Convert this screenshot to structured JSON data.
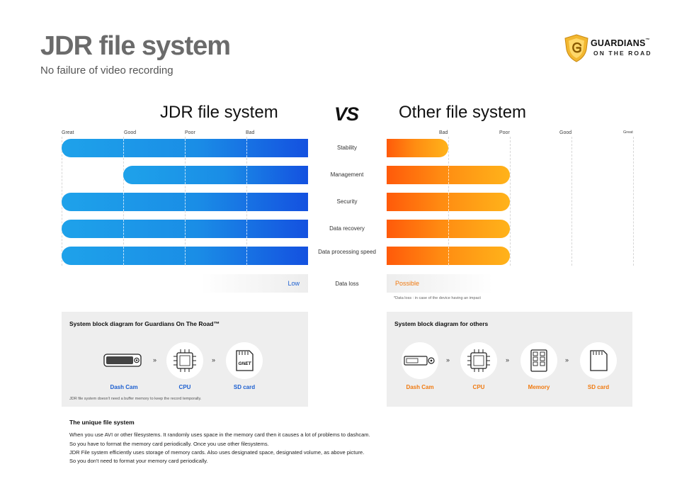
{
  "header": {
    "title": "JDR file system",
    "subtitle": "No failure of video recording",
    "logo_name": "GUARDIANS",
    "logo_tm": "™",
    "logo_tagline": "ON THE ROAD"
  },
  "comparison": {
    "left_heading": "JDR file system",
    "vs": "VS",
    "right_heading": "Other file system",
    "left_scale": [
      "Great",
      "Good",
      "Poor",
      "Bad"
    ],
    "right_scale": [
      "Bad",
      "Poor",
      "Good",
      "Great"
    ],
    "data_loss_label": "Data loss",
    "data_loss_jdr": "Low",
    "data_loss_other": "Possible",
    "footnote": "*Data loss : in case of the device having an impact"
  },
  "chart_data": {
    "type": "bar",
    "categories": [
      "Stability",
      "Management",
      "Security",
      "Data recovery",
      "Data processing speed"
    ],
    "scale": [
      "Bad",
      "Poor",
      "Good",
      "Great"
    ],
    "series": [
      {
        "name": "JDR file system",
        "values": [
          4,
          3,
          4,
          4,
          4
        ]
      },
      {
        "name": "Other file system",
        "values": [
          1,
          2,
          2,
          2,
          2
        ]
      }
    ],
    "colors": {
      "jdr": "#1a8de6",
      "other": "#ff8c12"
    }
  },
  "panels": {
    "left": {
      "title": "System block diagram for Guardians On The Road™",
      "nodes": [
        {
          "label": "Dash Cam",
          "icon": "dashcam-icon"
        },
        {
          "label": "CPU",
          "icon": "cpu-icon"
        },
        {
          "label": "SD card",
          "icon": "sd-card-icon",
          "brand": "GNET"
        }
      ],
      "arrow": "»",
      "note": "JDR file system doesn't need a buffer memory to keep the record temporally."
    },
    "right": {
      "title": "System block diagram for others",
      "nodes": [
        {
          "label": "Dash Cam",
          "icon": "dashcam-icon"
        },
        {
          "label": "CPU",
          "icon": "cpu-icon"
        },
        {
          "label": "Memory",
          "icon": "memory-icon"
        },
        {
          "label": "SD card",
          "icon": "sd-card-icon"
        }
      ],
      "arrow": "»"
    }
  },
  "description": {
    "title": "The unique file system",
    "lines": [
      "When you use AVI or other filesystems. It randomly uses space in the memory card then it causes a lot of problems to dashcam.",
      "So you have to format the memory card periodically. Once you use other filesystems.",
      "JDR File system efficiently uses storage of memory cards. Also uses designated space, designated volume, as above picture.",
      "So you don't need to format your memory card periodically."
    ]
  }
}
